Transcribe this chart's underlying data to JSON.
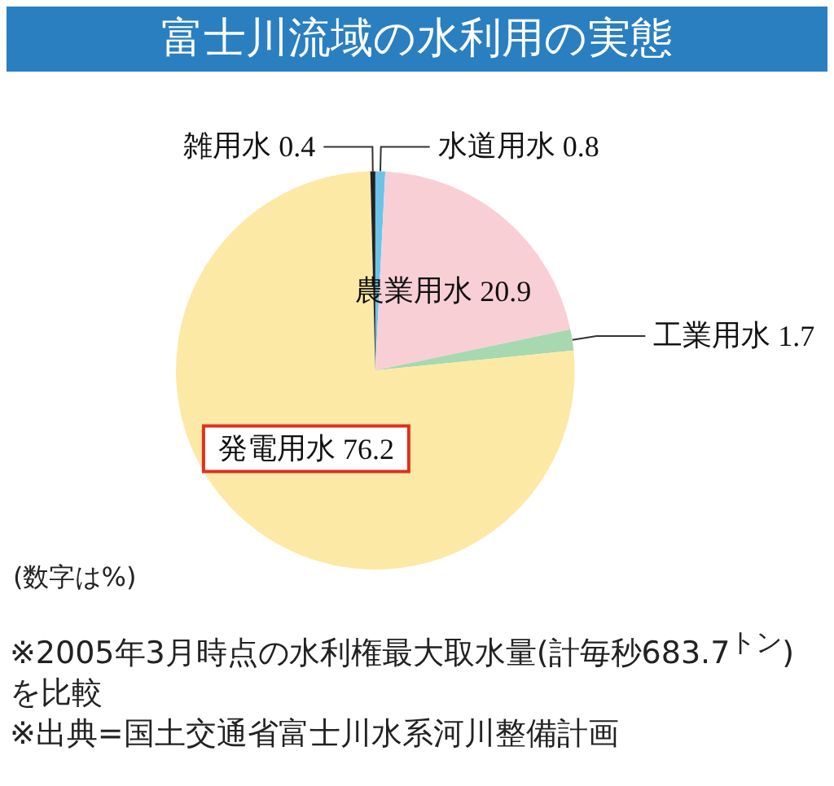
{
  "chart_data": {
    "type": "pie",
    "title": "富士川流域の水利用の実態",
    "categories": [
      "水道用水",
      "農業用水",
      "工業用水",
      "発電用水",
      "雑用水"
    ],
    "values": [
      0.8,
      20.9,
      1.7,
      76.2,
      0.4
    ],
    "colors": [
      "#6cc3e8",
      "#f9cfd6",
      "#a8d8b0",
      "#fde9a6",
      "#222222"
    ],
    "data_labels": true,
    "legend": false,
    "annotations": [
      "(数字は%)",
      "※2005年3月時点の水利権最大取水量(計毎秒683.7$^{トン}$)を比較",
      "※出典=国土交通省富士川水系河川整備計画"
    ]
  }
}
